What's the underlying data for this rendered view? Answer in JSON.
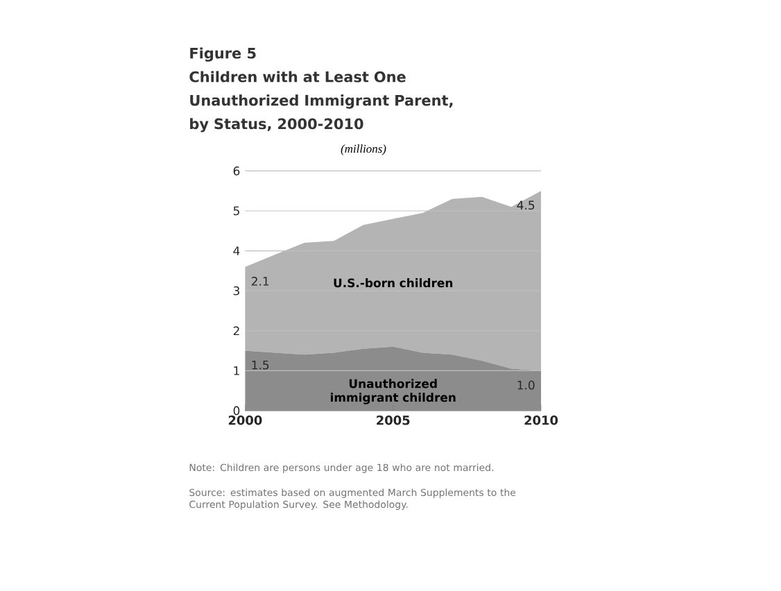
{
  "chart_data": {
    "type": "area",
    "stacked": true,
    "title": "Figure 5",
    "subtitle": "Children with at Least One Unauthorized Immigrant Parent, by Status, 2000-2010",
    "ylabel": "(millions)",
    "x": [
      2000,
      2001,
      2002,
      2003,
      2004,
      2005,
      2006,
      2007,
      2008,
      2009,
      2010
    ],
    "series": [
      {
        "name": "Unauthorized immigrant children",
        "color": "#8c8c8c",
        "values": [
          1.5,
          1.45,
          1.4,
          1.45,
          1.55,
          1.6,
          1.45,
          1.4,
          1.25,
          1.05,
          1.0
        ],
        "value_labels": [
          "1.5",
          null,
          null,
          null,
          null,
          null,
          null,
          null,
          null,
          null,
          "1.0"
        ]
      },
      {
        "name": "U.S.-born children",
        "color": "#b4b4b4",
        "values": [
          2.1,
          2.45,
          2.8,
          2.8,
          3.1,
          3.2,
          3.5,
          3.9,
          4.1,
          4.05,
          4.5
        ],
        "value_labels": [
          "2.1",
          null,
          null,
          null,
          null,
          null,
          null,
          null,
          null,
          null,
          "4.5"
        ]
      }
    ],
    "xlim": [
      2000,
      2010
    ],
    "xticks": [
      2000,
      2005,
      2010
    ],
    "ylim": [
      0,
      6
    ],
    "yticks": [
      0,
      1,
      2,
      3,
      4,
      5,
      6
    ],
    "grid": "y",
    "annotations": [
      "Note: Children are persons under age 18 who are not married.",
      "Source: estimates based on augmented March Supplements to the Current Population Survey. See Methodology."
    ]
  }
}
